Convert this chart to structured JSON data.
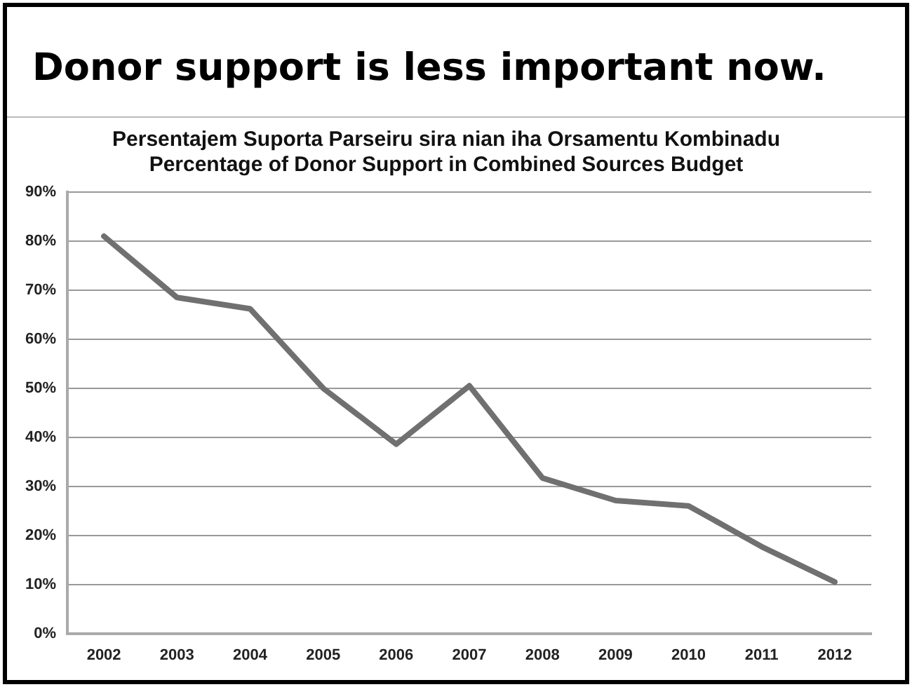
{
  "chart_data": {
    "type": "line",
    "title": "Donor support is less important now.",
    "subtitle": "Persentajem Suporta Parseiru sira nian iha Orsamentu Kombinadu\nPercentage of Donor Support in Combined Sources Budget",
    "categories": [
      "2002",
      "2003",
      "2004",
      "2005",
      "2006",
      "2007",
      "2008",
      "2009",
      "2010",
      "2011",
      "2012"
    ],
    "series": [
      {
        "color": "#707070",
        "values": [
          81,
          68.5,
          66.2,
          50,
          38.6,
          50.5,
          31.7,
          27.1,
          26,
          17.7,
          10.5
        ]
      }
    ],
    "ylim": [
      0,
      90
    ],
    "yticks": [
      {
        "value": 0,
        "label": "0%"
      },
      {
        "value": 10,
        "label": "10%"
      },
      {
        "value": 20,
        "label": "20%"
      },
      {
        "value": 30,
        "label": "30%"
      },
      {
        "value": 40,
        "label": "40%"
      },
      {
        "value": 50,
        "label": "50%"
      },
      {
        "value": 60,
        "label": "60%"
      },
      {
        "value": 70,
        "label": "70%"
      },
      {
        "value": 80,
        "label": "80%"
      },
      {
        "value": 90,
        "label": "90%"
      }
    ],
    "grid": "y",
    "legend": false,
    "marker": "none",
    "line_style": "solid"
  }
}
